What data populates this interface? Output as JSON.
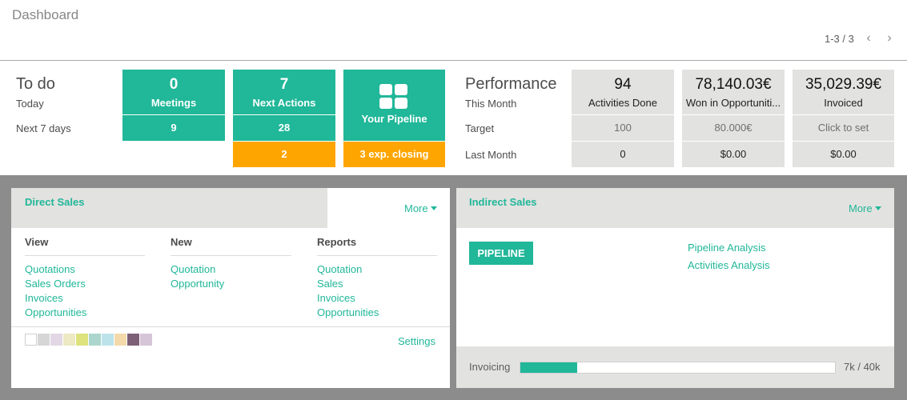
{
  "header": {
    "title": "Dashboard",
    "pager": "1-3 / 3",
    "prev_icon": "‹",
    "next_icon": "›"
  },
  "todo": {
    "title": "To do",
    "rows": [
      "Today",
      "Next 7 days"
    ],
    "meetings": {
      "count": "0",
      "label": "Meetings",
      "next7": "9"
    },
    "next_actions": {
      "count": "7",
      "label": "Next Actions",
      "next7": "28",
      "overdue": "2"
    },
    "pipeline": {
      "label": "Your Pipeline",
      "closing": "3 exp. closing"
    }
  },
  "performance": {
    "title": "Performance",
    "rows": [
      "This Month",
      "Target",
      "Last Month"
    ],
    "tiles": [
      {
        "value": "94",
        "label": "Activities Done",
        "target": "100",
        "last_month": "0"
      },
      {
        "value": "78,140.03€",
        "label": "Won in Opportuniti...",
        "target": "80.000€",
        "last_month": "$0.00"
      },
      {
        "value": "35,029.39€",
        "label": "Invoiced",
        "target": "Click to set",
        "last_month": "$0.00"
      }
    ]
  },
  "direct_sales": {
    "title": "Direct Sales",
    "more": "More",
    "columns": [
      {
        "header": "View",
        "links": [
          "Quotations",
          "Sales Orders",
          "Invoices",
          "Opportunities"
        ]
      },
      {
        "header": "New",
        "links": [
          "Quotation",
          "Opportunity"
        ]
      },
      {
        "header": "Reports",
        "links": [
          "Quotation",
          "Sales",
          "Invoices",
          "Opportunities"
        ]
      }
    ],
    "colors": [
      "#ffffff",
      "#d6d6d6",
      "#e2d7e4",
      "#ece9c3",
      "#dde27d",
      "#acd6cd",
      "#bde3ea",
      "#f4daab",
      "#7e6078",
      "#d6c4d8"
    ],
    "settings": "Settings"
  },
  "indirect_sales": {
    "title": "Indirect Sales",
    "more": "More",
    "pipeline_button": "PIPELINE",
    "links": [
      "Pipeline Analysis",
      "Activities Analysis"
    ],
    "progress": {
      "label": "Invoicing",
      "value": "7k / 40k",
      "percent": 18
    }
  }
}
